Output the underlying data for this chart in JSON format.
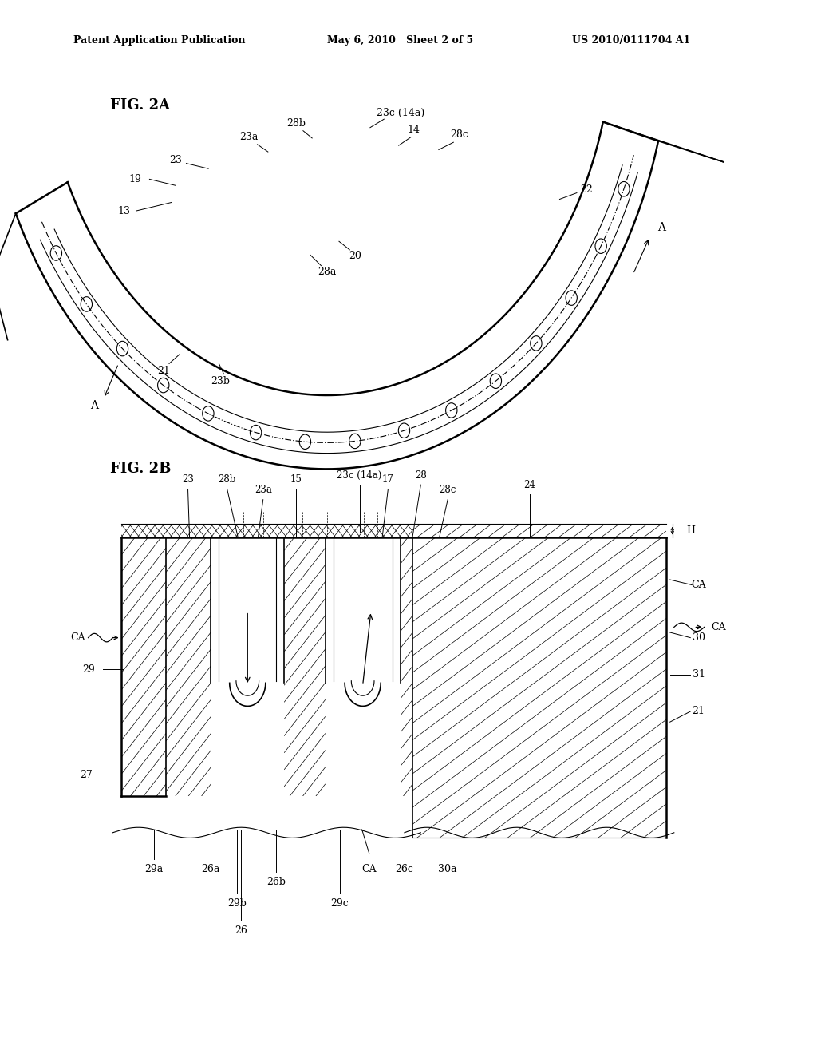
{
  "header_left": "Patent Application Publication",
  "header_mid": "May 6, 2010   Sheet 2 of 5",
  "header_right": "US 2010/0111704 A1",
  "fig2a_label": "FIG. 2A",
  "fig2b_label": "FIG. 2B",
  "bg_color": "#ffffff",
  "line_color": "#000000"
}
